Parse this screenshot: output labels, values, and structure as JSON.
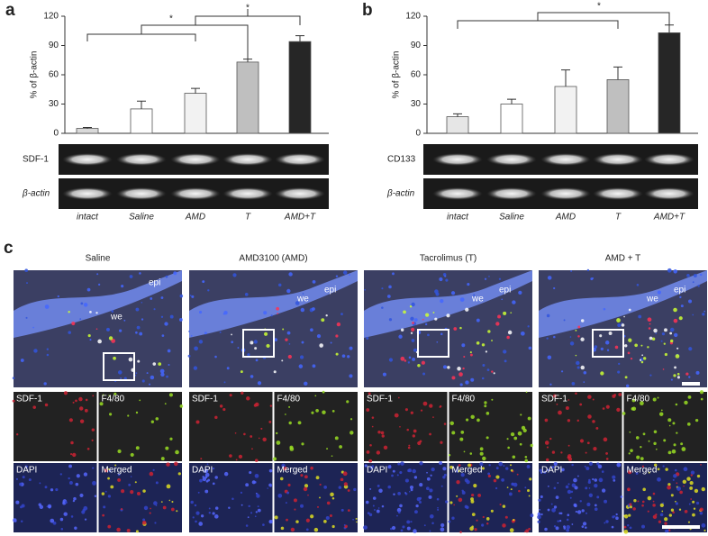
{
  "panel_labels": [
    "a",
    "b",
    "c"
  ],
  "chart_data": [
    {
      "type": "bar",
      "y_label": "% of β-actin",
      "categories": [
        "intact",
        "Saline",
        "AMD",
        "T",
        "AMD+T"
      ],
      "values": [
        5,
        25,
        41,
        73,
        94
      ],
      "errors": [
        1,
        8,
        5,
        3,
        6
      ],
      "colors": [
        "#d9d9d9",
        "#ffffff",
        "#f2f2f2",
        "#bfbfbf",
        "#262626"
      ],
      "ylim": [
        0,
        120
      ],
      "yticks": [
        0,
        30,
        60,
        90,
        120
      ],
      "annotations": [
        "*",
        "*"
      ],
      "blots": [
        "SDF-1",
        "β-actin"
      ]
    },
    {
      "type": "bar",
      "y_label": "% of β-actin",
      "categories": [
        "intact",
        "Saline",
        "AMD",
        "T",
        "AMD+T"
      ],
      "values": [
        17,
        30,
        48,
        55,
        103
      ],
      "errors": [
        3,
        5,
        17,
        13,
        8
      ],
      "colors": [
        "#e6e6e6",
        "#ffffff",
        "#f2f2f2",
        "#bfbfbf",
        "#262626"
      ],
      "ylim": [
        0,
        120
      ],
      "yticks": [
        0,
        30,
        60,
        90,
        120
      ],
      "annotations": [
        "*"
      ],
      "blots": [
        "CD133",
        "β-actin"
      ]
    }
  ],
  "panel_c": {
    "columns": [
      "Saline",
      "AMD3100 (AMD)",
      "Tacrolimus (T)",
      "AMD + T"
    ],
    "image_labels": [
      "epi",
      "we"
    ],
    "channels": [
      "SDF-1",
      "F4/80",
      "DAPI",
      "Merged"
    ]
  }
}
